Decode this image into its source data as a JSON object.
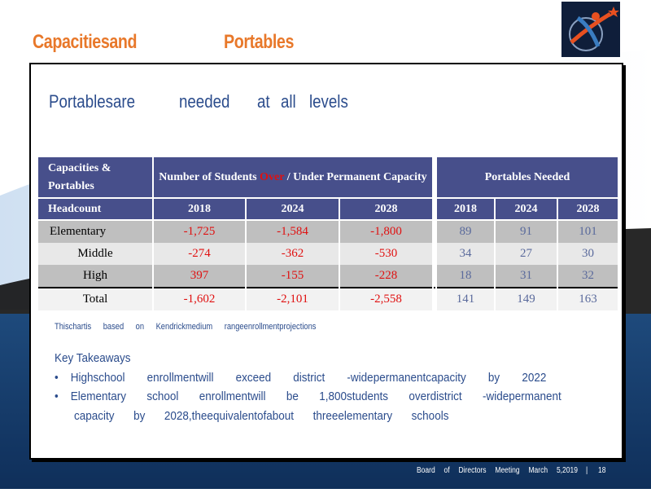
{
  "header": {
    "title": [
      "Capacitiesand",
      "Portables"
    ],
    "subtitle": [
      "Portablesare",
      "needed",
      "at",
      "all",
      "levels"
    ]
  },
  "table": {
    "header": [
      "Capacities & Portables",
      [
        "Number of Students",
        "Over",
        "/ Under Permanent Capacity"
      ],
      "Portables Needed"
    ],
    "subheader": [
      "Headcount",
      "2018",
      "2024",
      "2028",
      "2018",
      "2024",
      "2028"
    ],
    "rows": [
      [
        "Elementary",
        "-1,725",
        "-1,584",
        "-1,800",
        "89",
        "91",
        "101"
      ],
      [
        "Middle",
        "-274",
        "-362",
        "-530",
        "34",
        "27",
        "30"
      ],
      [
        "High",
        "397",
        "-155",
        "-228",
        "18",
        "31",
        "32"
      ],
      [
        "Total",
        "-1,602",
        "-2,101",
        "-2,558",
        "141",
        "149",
        "163"
      ]
    ]
  },
  "note": "Thischartis based on Kendrickmedium rangeenrollmentprojections",
  "takeaways": {
    "heading": "Key Takeaways",
    "bullets": [
      "Highschool enrollmentwill exceed district -widepermanentcapacity by 2022",
      "Elementary school enrollmentwill be 1,800students overdistrict -widepermanent",
      "capacity by 2028,theequivalentofabout threeelementary schools"
    ]
  },
  "footer": [
    "Board of Directors Meeting March 5,2019",
    "|",
    "18"
  ]
}
